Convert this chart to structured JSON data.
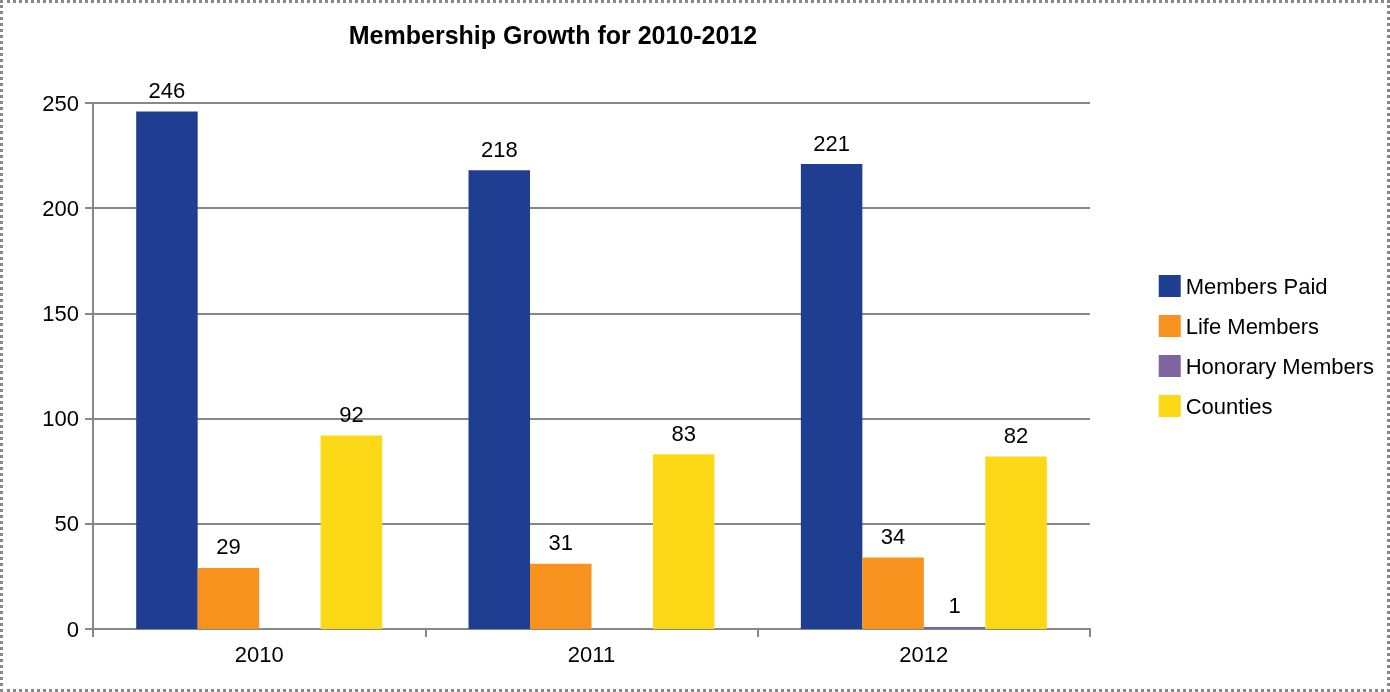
{
  "chart_data": {
    "type": "bar",
    "title": "Membership Growth for 2010-2012",
    "categories": [
      "2010",
      "2011",
      "2012"
    ],
    "series": [
      {
        "name": "Members Paid",
        "color": "#1f3d91",
        "values": [
          246,
          218,
          221
        ]
      },
      {
        "name": "Life Members",
        "color": "#f7921e",
        "values": [
          29,
          31,
          34
        ]
      },
      {
        "name": "Honorary Members",
        "color": "#8064a2",
        "values": [
          null,
          null,
          1
        ]
      },
      {
        "name": "Counties",
        "color": "#fdd816",
        "values": [
          92,
          83,
          82
        ]
      }
    ],
    "ylim": [
      0,
      250
    ],
    "yticks": [
      0,
      50,
      100,
      150,
      200,
      250
    ],
    "grid": "y",
    "legend": "right",
    "data_labels": true
  }
}
